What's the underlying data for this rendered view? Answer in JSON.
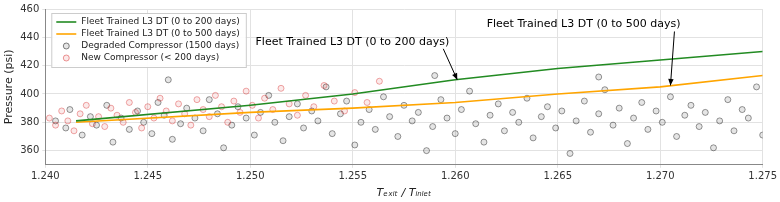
{
  "chart_data": {
    "type": "scatter",
    "x_label": "Tₑₓᵢₜ / Tᵢₙₗₑₜ",
    "y_label": "Pressure (psi)",
    "xlim": [
      1.24,
      1.275
    ],
    "xticks": [
      {
        "value": 1.24,
        "label": "1.240"
      },
      {
        "value": 1.245,
        "label": "1.245"
      },
      {
        "value": 1.25,
        "label": "1.250"
      },
      {
        "value": 1.255,
        "label": "1.255"
      },
      {
        "value": 1.26,
        "label": "1.260"
      },
      {
        "value": 1.265,
        "label": "1.265"
      },
      {
        "value": 1.27,
        "label": "1.270"
      },
      {
        "value": 1.275,
        "label": "1.275"
      }
    ],
    "ylim": [
      350,
      460
    ],
    "yticks": [
      360,
      380,
      400,
      420,
      440,
      460
    ],
    "grid": true,
    "legend": "upper left",
    "series": [
      {
        "name": "Fleet Trained L3 DT (0 to 200 days)",
        "type": "line",
        "color": "#228b22",
        "line_style": "solid",
        "x": [
          1.2415,
          1.25,
          1.255,
          1.26,
          1.265,
          1.27,
          1.275
        ],
        "values": [
          381,
          392,
          400,
          410,
          418,
          424,
          430
        ]
      },
      {
        "name": "Fleet Trained L3 DT (0 to 500 days)",
        "type": "line",
        "color": "#ffa500",
        "line_style": "solid",
        "x": [
          1.2415,
          1.25,
          1.255,
          1.26,
          1.265,
          1.27,
          1.275
        ],
        "values": [
          380,
          387,
          390,
          394,
          400,
          405,
          413
        ]
      },
      {
        "name": "Degraded Compressor (1500 days)",
        "type": "scatter",
        "color": "#000000",
        "marker": "circle",
        "x": [
          1.2405,
          1.241,
          1.2412,
          1.2418,
          1.2422,
          1.2425,
          1.243,
          1.2433,
          1.2437,
          1.2441,
          1.2445,
          1.2448,
          1.2452,
          1.2455,
          1.2458,
          1.2462,
          1.2466,
          1.2469,
          1.2473,
          1.2477,
          1.248,
          1.2484,
          1.2487,
          1.2491,
          1.2494,
          1.2498,
          1.2502,
          1.2505,
          1.2509,
          1.2512,
          1.2516,
          1.2519,
          1.2523,
          1.2526,
          1.253,
          1.2533,
          1.2537,
          1.254,
          1.2544,
          1.2547,
          1.2551,
          1.2554,
          1.2558,
          1.2561,
          1.2565,
          1.2568,
          1.2572,
          1.2575,
          1.2579,
          1.2582,
          1.2586,
          1.2589,
          1.2593,
          1.2596,
          1.26,
          1.2603,
          1.2607,
          1.261,
          1.2614,
          1.2617,
          1.2621,
          1.2624,
          1.2628,
          1.2631,
          1.2635,
          1.2638,
          1.2642,
          1.2645,
          1.2649,
          1.2652,
          1.2656,
          1.2659,
          1.2663,
          1.2666,
          1.267,
          1.2673,
          1.2677,
          1.268,
          1.2684,
          1.2687,
          1.2691,
          1.2694,
          1.2698,
          1.2701,
          1.2705,
          1.2708,
          1.2712,
          1.2715,
          1.2719,
          1.2722,
          1.2726,
          1.2729,
          1.2733,
          1.2736,
          1.274,
          1.2743,
          1.2747,
          1.275,
          1.246,
          1.259,
          1.267
        ],
        "values": [
          381,
          376,
          389,
          371,
          384,
          378,
          392,
          366,
          383,
          375,
          388,
          380,
          372,
          394,
          385,
          368,
          379,
          390,
          383,
          374,
          396,
          386,
          362,
          378,
          391,
          383,
          371,
          387,
          399,
          380,
          367,
          384,
          393,
          376,
          388,
          381,
          405,
          372,
          386,
          395,
          364,
          380,
          389,
          375,
          398,
          384,
          370,
          392,
          381,
          387,
          360,
          377,
          396,
          383,
          372,
          389,
          402,
          379,
          366,
          385,
          393,
          374,
          387,
          380,
          397,
          369,
          384,
          391,
          376,
          388,
          358,
          381,
          395,
          373,
          386,
          403,
          378,
          390,
          365,
          383,
          394,
          375,
          388,
          380,
          398,
          370,
          385,
          392,
          377,
          387,
          362,
          381,
          396,
          374,
          389,
          383,
          405,
          371,
          410,
          413,
          412
        ]
      },
      {
        "name": "New Compressor (< 200 days)",
        "type": "scatter",
        "color": "#d62728",
        "marker": "circle",
        "x": [
          1.2402,
          1.2405,
          1.2408,
          1.2411,
          1.2414,
          1.2417,
          1.242,
          1.2423,
          1.2426,
          1.2429,
          1.2432,
          1.2435,
          1.2438,
          1.2441,
          1.2444,
          1.2447,
          1.245,
          1.2453,
          1.2456,
          1.2459,
          1.2462,
          1.2465,
          1.2468,
          1.2471,
          1.2474,
          1.2477,
          1.248,
          1.2483,
          1.2486,
          1.2489,
          1.2492,
          1.2495,
          1.2498,
          1.2501,
          1.2504,
          1.2507,
          1.2511,
          1.2515,
          1.2519,
          1.2523,
          1.2527,
          1.2531,
          1.2536,
          1.2541,
          1.2546,
          1.2551,
          1.2557,
          1.2563
        ],
        "values": [
          383,
          378,
          388,
          381,
          374,
          386,
          392,
          379,
          384,
          377,
          390,
          385,
          380,
          394,
          387,
          376,
          391,
          383,
          397,
          388,
          381,
          393,
          386,
          378,
          396,
          389,
          384,
          399,
          391,
          380,
          395,
          387,
          402,
          392,
          383,
          397,
          389,
          404,
          393,
          385,
          399,
          391,
          406,
          395,
          388,
          401,
          394,
          409
        ]
      }
    ],
    "annotations": [
      {
        "text": "Fleet Trained L3 DT (0 to 200 days)",
        "x": 1.2601,
        "y": 410
      },
      {
        "text": "Fleet Trained L3 DT (0 to 500 days)",
        "x": 1.2705,
        "y": 406
      }
    ]
  }
}
